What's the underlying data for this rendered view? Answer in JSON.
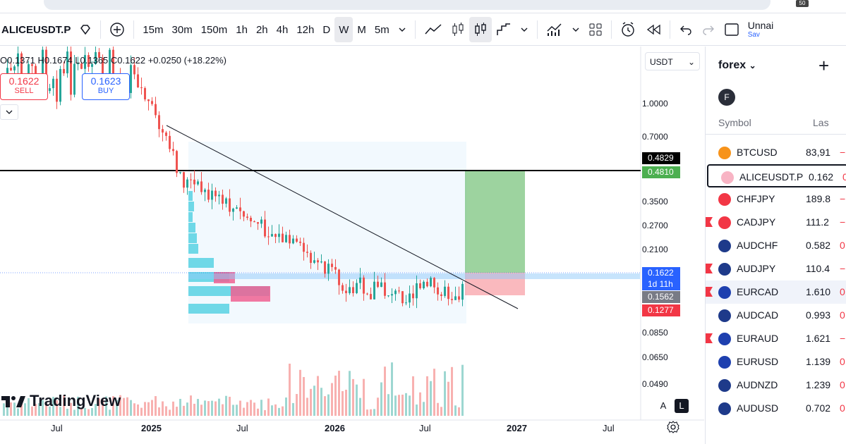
{
  "browser": {
    "tab_badge": "50"
  },
  "toolbar": {
    "symbol": "ALICEUSDT.P",
    "intervals": [
      "15m",
      "30m",
      "150m",
      "1h",
      "2h",
      "4h",
      "12h",
      "D",
      "W",
      "M",
      "5m"
    ],
    "active_interval": "W",
    "layout_name": "Unnai",
    "layout_sub": "Sav"
  },
  "chart": {
    "ohlc": {
      "o": "O0.1371",
      "h": "H0.1674",
      "l": "L0.1365",
      "c": "C0.1622",
      "change": "+0.0250 (+18.22%)"
    },
    "sell": {
      "price": "0.1622",
      "label": "SELL"
    },
    "buy": {
      "price": "0.1623",
      "label": "BUY"
    },
    "currency": "USDT",
    "price_labels": [
      "1.0000",
      "0.7000",
      "0.3500",
      "0.2700",
      "0.2100",
      "0.0850",
      "0.0650",
      "0.0490"
    ],
    "tags": {
      "hline": "0.4829",
      "target": "0.4810",
      "last": "0.1622",
      "countdown": "1d 11h",
      "poc": "0.1562",
      "stop": "0.1277"
    },
    "x_labels": [
      "Jul",
      "2025",
      "Jul",
      "2026",
      "Jul",
      "2027",
      "Jul"
    ],
    "logo": "TradingView",
    "auto_btn": "A",
    "log_btn": "L",
    "colors": {
      "up": "#26a69a",
      "down": "#ef5350",
      "target": "#4caf50",
      "stop": "#f23645",
      "last": "#2962ff"
    }
  },
  "watchlist": {
    "title": "forex",
    "avatar": "F",
    "col_symbol": "Symbol",
    "col_last": "Las",
    "rows": [
      {
        "symbol": "BTCUSD",
        "last": "83,91",
        "chg": "−",
        "icon": "#f7931a",
        "flag": false
      },
      {
        "symbol": "ALICEUSDT.P",
        "last": "0.162",
        "chg": "0.",
        "icon": "#f8b4c4",
        "flag": false
      },
      {
        "symbol": "CHFJPY",
        "last": "189.8",
        "chg": "−",
        "icon": "#f23645",
        "flag": false
      },
      {
        "symbol": "CADJPY",
        "last": "111.2",
        "chg": "−",
        "icon": "#f23645",
        "flag": true
      },
      {
        "symbol": "AUDCHF",
        "last": "0.582",
        "chg": "0.",
        "icon": "#1e3a8a",
        "flag": false
      },
      {
        "symbol": "AUDJPY",
        "last": "110.4",
        "chg": "−",
        "icon": "#1e3a8a",
        "flag": true
      },
      {
        "symbol": "EURCAD",
        "last": "1.610",
        "chg": "0.",
        "icon": "#1e40af",
        "flag": true
      },
      {
        "symbol": "AUDCAD",
        "last": "0.993",
        "chg": "0.",
        "icon": "#1e3a8a",
        "flag": false
      },
      {
        "symbol": "EURAUD",
        "last": "1.621",
        "chg": "−",
        "icon": "#1e40af",
        "flag": true
      },
      {
        "symbol": "EURUSD",
        "last": "1.139",
        "chg": "0.",
        "icon": "#1e40af",
        "flag": false
      },
      {
        "symbol": "AUDNZD",
        "last": "1.239",
        "chg": "0.",
        "icon": "#1e3a8a",
        "flag": false
      },
      {
        "symbol": "AUDUSD",
        "last": "0.702",
        "chg": "0.",
        "icon": "#1e3a8a",
        "flag": false
      }
    ]
  }
}
